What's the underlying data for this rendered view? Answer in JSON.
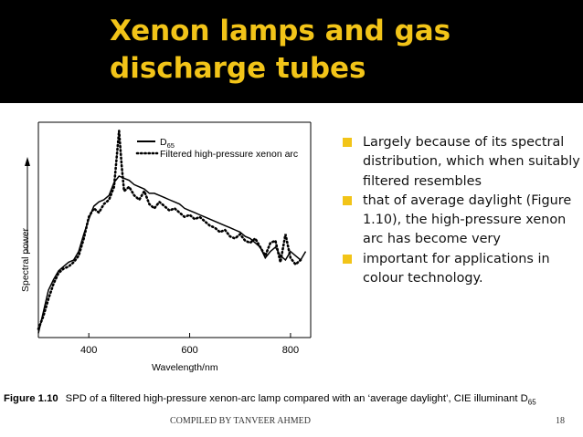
{
  "slide": {
    "title_lines": [
      "Xenon lamps and gas",
      "discharge tubes"
    ],
    "bullets": [
      "Largely because of its spectral distribution, which when suitably filtered resembles",
      "that of average daylight (Figure 1.10), the high-pressure xenon arc has become very",
      "important for applications in colour technology."
    ],
    "caption": {
      "label": "Figure 1.10",
      "text": "SPD of a filtered high-pressure xenon-arc lamp compared with an ‘average daylight’, CIE illuminant D",
      "sub": "65"
    },
    "footer": {
      "credit": "COMPILED BY TANVEER AHMED",
      "page": "18"
    },
    "colors": {
      "header_bg": "#000000",
      "title": "#f2c418",
      "bullet": "#f2c418"
    }
  },
  "chart_data": {
    "type": "line",
    "xlabel": "Wavelength/nm",
    "ylabel": "Spectral power",
    "xticks": [
      "400",
      "600",
      "800"
    ],
    "xlim": [
      300,
      840
    ],
    "ylim": [
      0,
      100
    ],
    "y_axis_arrow": true,
    "legend_position": "top",
    "series": [
      {
        "name": "D65",
        "name_main": "D",
        "name_sub": "65",
        "style": "solid",
        "points": [
          [
            300,
            2
          ],
          [
            310,
            12
          ],
          [
            320,
            22
          ],
          [
            330,
            27
          ],
          [
            340,
            31
          ],
          [
            350,
            33
          ],
          [
            360,
            35
          ],
          [
            370,
            36
          ],
          [
            380,
            40
          ],
          [
            390,
            48
          ],
          [
            400,
            55
          ],
          [
            410,
            61
          ],
          [
            420,
            63
          ],
          [
            430,
            64
          ],
          [
            440,
            66
          ],
          [
            450,
            72
          ],
          [
            460,
            75
          ],
          [
            470,
            74
          ],
          [
            480,
            73
          ],
          [
            490,
            71
          ],
          [
            500,
            70
          ],
          [
            510,
            69
          ],
          [
            520,
            67
          ],
          [
            530,
            67
          ],
          [
            540,
            66
          ],
          [
            550,
            65
          ],
          [
            560,
            64
          ],
          [
            570,
            63
          ],
          [
            580,
            62
          ],
          [
            590,
            60
          ],
          [
            600,
            59
          ],
          [
            610,
            58
          ],
          [
            620,
            57
          ],
          [
            630,
            56
          ],
          [
            640,
            55
          ],
          [
            650,
            54
          ],
          [
            660,
            53
          ],
          [
            670,
            52
          ],
          [
            680,
            51
          ],
          [
            690,
            50
          ],
          [
            700,
            49
          ],
          [
            710,
            47
          ],
          [
            720,
            46
          ],
          [
            730,
            44
          ],
          [
            740,
            42
          ],
          [
            750,
            37
          ],
          [
            760,
            40
          ],
          [
            770,
            42
          ],
          [
            780,
            38
          ],
          [
            790,
            36
          ],
          [
            800,
            40
          ],
          [
            810,
            38
          ],
          [
            820,
            36
          ],
          [
            830,
            40
          ]
        ]
      },
      {
        "name": "Filtered high-pressure xenon arc",
        "style": "dotted",
        "points": [
          [
            300,
            4
          ],
          [
            310,
            10
          ],
          [
            320,
            18
          ],
          [
            330,
            25
          ],
          [
            340,
            30
          ],
          [
            350,
            32
          ],
          [
            360,
            33
          ],
          [
            370,
            35
          ],
          [
            380,
            38
          ],
          [
            390,
            46
          ],
          [
            400,
            56
          ],
          [
            410,
            60
          ],
          [
            420,
            58
          ],
          [
            430,
            62
          ],
          [
            440,
            64
          ],
          [
            450,
            70
          ],
          [
            460,
            96
          ],
          [
            465,
            80
          ],
          [
            470,
            68
          ],
          [
            480,
            70
          ],
          [
            490,
            66
          ],
          [
            500,
            64
          ],
          [
            510,
            68
          ],
          [
            520,
            62
          ],
          [
            530,
            60
          ],
          [
            540,
            63
          ],
          [
            550,
            61
          ],
          [
            560,
            59
          ],
          [
            570,
            60
          ],
          [
            580,
            58
          ],
          [
            590,
            56
          ],
          [
            600,
            57
          ],
          [
            610,
            55
          ],
          [
            620,
            56
          ],
          [
            630,
            54
          ],
          [
            640,
            52
          ],
          [
            650,
            51
          ],
          [
            660,
            49
          ],
          [
            670,
            50
          ],
          [
            680,
            47
          ],
          [
            690,
            46
          ],
          [
            700,
            48
          ],
          [
            710,
            45
          ],
          [
            720,
            44
          ],
          [
            730,
            46
          ],
          [
            740,
            42
          ],
          [
            750,
            38
          ],
          [
            760,
            44
          ],
          [
            770,
            45
          ],
          [
            780,
            35
          ],
          [
            790,
            48
          ],
          [
            800,
            37
          ],
          [
            810,
            34
          ],
          [
            820,
            36
          ]
        ]
      }
    ]
  }
}
